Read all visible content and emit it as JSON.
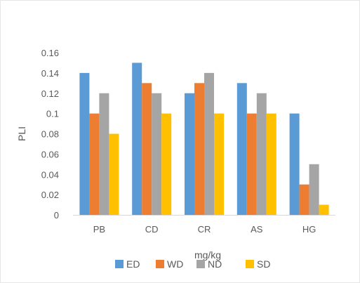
{
  "chart_data": {
    "type": "bar",
    "title": "",
    "xlabel": "mg/kg",
    "ylabel": "PLI",
    "categories": [
      "PB",
      "CD",
      "CR",
      "AS",
      "HG"
    ],
    "series": [
      {
        "name": "ED",
        "color": "#5b9bd5",
        "values": [
          0.14,
          0.15,
          0.12,
          0.13,
          0.1
        ]
      },
      {
        "name": "WD",
        "color": "#ed7d31",
        "values": [
          0.1,
          0.13,
          0.13,
          0.1,
          0.03
        ]
      },
      {
        "name": "ND",
        "color": "#a5a5a5",
        "values": [
          0.12,
          0.12,
          0.14,
          0.12,
          0.05
        ]
      },
      {
        "name": "SD",
        "color": "#ffc000",
        "values": [
          0.08,
          0.1,
          0.1,
          0.1,
          0.01
        ]
      }
    ],
    "ylim": [
      0,
      0.16
    ],
    "yticks": [
      "0",
      "0.02",
      "0.04",
      "0.06",
      "0.08",
      "0.1",
      "0.12",
      "0.14",
      "0.16"
    ],
    "grid": false,
    "legend_position": "bottom"
  }
}
